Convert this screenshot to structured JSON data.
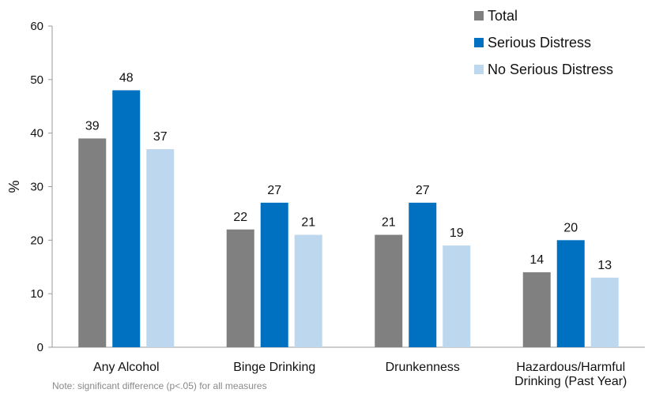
{
  "chart_data": {
    "type": "bar",
    "ylabel": "%",
    "ylim": [
      0,
      60
    ],
    "yticks": [
      0,
      10,
      20,
      30,
      40,
      50,
      60
    ],
    "categories": [
      [
        "Any Alcohol"
      ],
      [
        "Binge Drinking"
      ],
      [
        "Drunkenness"
      ],
      [
        "Hazardous/Harmful",
        "Drinking (Past Year)"
      ]
    ],
    "series": [
      {
        "name": "Total",
        "color": "#808080",
        "values": [
          39,
          22,
          21,
          14
        ]
      },
      {
        "name": "Serious Distress",
        "color": "#0070C0",
        "values": [
          48,
          27,
          27,
          20
        ]
      },
      {
        "name": "No Serious Distress",
        "color": "#BDD7EE",
        "values": [
          37,
          21,
          19,
          13
        ]
      }
    ],
    "legend_position": "top-right",
    "grid": false,
    "note": "Note: significant difference (p<.05) for all measures"
  }
}
